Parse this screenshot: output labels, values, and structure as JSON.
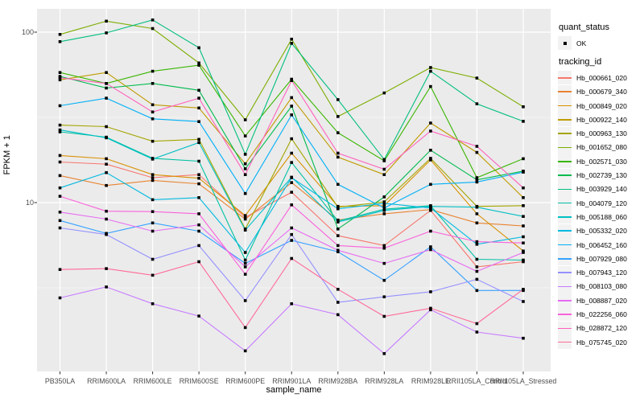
{
  "chart_data": {
    "type": "line",
    "title": "",
    "xlabel": "sample_name",
    "ylabel": "FPKM + 1",
    "y_scale": "log10",
    "grid": true,
    "legend_position": "right",
    "panel_bg": "#EBEBEB",
    "grid_color": "#FFFFFF",
    "point_color": "#000000",
    "y_axis_ticks": [
      {
        "value": 100,
        "label": "100"
      },
      {
        "value": 10,
        "label": "10"
      }
    ],
    "y_minor_gridlines": [
      31.623,
      3.1623
    ],
    "ylim_approx": [
      1.0,
      140
    ],
    "categories": [
      "PB350LA",
      "RRIM600LA",
      "RRIM600LE",
      "RRIM600SE",
      "RRIM600PE",
      "RRIM901LA",
      "RRIM928BA",
      "RRIM928LA",
      "RRIM928LE",
      "RRII105LA_Control",
      "RRII105LA_Stressed"
    ],
    "legend": {
      "quant_title": "quant_status",
      "quant_label": "OK",
      "series_title": "tracking_id"
    },
    "series": [
      {
        "name": "Hb_000661_020",
        "color": "#F8766D",
        "values": [
          17.3,
          16.8,
          14.0,
          14.6,
          8.2,
          11.5,
          6.4,
          5.6,
          9.0,
          4.2,
          4.5
        ]
      },
      {
        "name": "Hb_000679_340",
        "color": "#EA8331",
        "values": [
          14.4,
          12.6,
          13.5,
          12.9,
          8.0,
          13.1,
          7.9,
          8.6,
          9.1,
          7.6,
          7.3
        ]
      },
      {
        "name": "Hb_000849_020",
        "color": "#D89000",
        "values": [
          18.9,
          18.1,
          14.6,
          13.9,
          8.4,
          19.5,
          9.5,
          9.6,
          17.8,
          8.6,
          5.2
        ]
      },
      {
        "name": "Hb_000922_140",
        "color": "#C09B00",
        "values": [
          52.5,
          58.0,
          37.5,
          35.9,
          16.9,
          41.3,
          18.5,
          14.6,
          29.3,
          19.7,
          10.7
        ]
      },
      {
        "name": "Hb_000963_130",
        "color": "#A3A500",
        "values": [
          28.5,
          27.9,
          22.9,
          23.5,
          7.0,
          23.7,
          9.4,
          10.1,
          18.2,
          9.5,
          9.6
        ]
      },
      {
        "name": "Hb_001652_080",
        "color": "#7CAE00",
        "values": [
          97,
          116,
          105,
          66,
          30.6,
          91,
          32,
          44,
          62,
          53.8,
          36.5
        ]
      },
      {
        "name": "Hb_002571_030",
        "color": "#39B600",
        "values": [
          58,
          50,
          59,
          64,
          24.6,
          53,
          25.7,
          17.6,
          48,
          14.0,
          18.1
        ]
      },
      {
        "name": "Hb_002739_130",
        "color": "#00BB4E",
        "values": [
          55,
          47,
          50,
          45.6,
          15.8,
          36.8,
          7.0,
          10.8,
          20.3,
          13.6,
          15.3
        ]
      },
      {
        "name": "Hb_003929_140",
        "color": "#00BF7D",
        "values": [
          88,
          99,
          118,
          81,
          19.2,
          86,
          40.2,
          17.9,
          59,
          38,
          30
        ]
      },
      {
        "name": "Hb_004079_120",
        "color": "#00C1A3",
        "values": [
          26.0,
          24.2,
          18.2,
          17.5,
          4.6,
          17.2,
          7.8,
          9.15,
          9.6,
          4.65,
          4.6
        ]
      },
      {
        "name": "Hb_005188_060",
        "color": "#00BFC4",
        "values": [
          26.7,
          24.0,
          18.0,
          22.5,
          6.9,
          14.1,
          7.7,
          9.0,
          9.5,
          9.4,
          8.3
        ]
      },
      {
        "name": "Hb_005332_020",
        "color": "#00BAE0",
        "values": [
          12.2,
          15.0,
          10.4,
          10.7,
          5.1,
          14.0,
          9.2,
          9.9,
          9.3,
          5.7,
          6.3
        ]
      },
      {
        "name": "Hb_006452_160",
        "color": "#00B0F6",
        "values": [
          37,
          41,
          31,
          29.9,
          11.3,
          32.7,
          12.8,
          9.3,
          12.8,
          13.2,
          15.1
        ]
      },
      {
        "name": "Hb_007929_080",
        "color": "#35A2FF",
        "values": [
          7.85,
          6.6,
          7.6,
          6.8,
          4.4,
          6.0,
          5.15,
          3.5,
          5.5,
          3.05,
          3.05
        ]
      },
      {
        "name": "Hb_007943_120",
        "color": "#9590FF",
        "values": [
          7.1,
          6.5,
          4.65,
          5.6,
          2.66,
          6.5,
          2.6,
          2.8,
          3.0,
          3.55,
          2.63
        ]
      },
      {
        "name": "Hb_008103_080",
        "color": "#C77CFF",
        "values": [
          2.76,
          3.2,
          2.55,
          2.16,
          1.35,
          2.55,
          2.2,
          1.3,
          2.35,
          1.74,
          1.6
        ]
      },
      {
        "name": "Hb_008887_020",
        "color": "#E76BF3",
        "values": [
          8.8,
          8.0,
          6.8,
          7.4,
          4.2,
          7.1,
          5.25,
          4.4,
          5.3,
          3.95,
          5.1
        ]
      },
      {
        "name": "Hb_022256_060",
        "color": "#FA62DB",
        "values": [
          10.9,
          8.9,
          8.85,
          8.6,
          3.8,
          9.7,
          5.6,
          5.4,
          6.8,
          5.9,
          5.8
        ]
      },
      {
        "name": "Hb_028872_120",
        "color": "#FF62BC",
        "values": [
          54,
          50,
          34,
          41,
          14.6,
          52,
          19.5,
          15.7,
          26.3,
          21.4,
          12.2
        ]
      },
      {
        "name": "Hb_075745_020",
        "color": "#FF6A98",
        "values": [
          4.05,
          4.1,
          3.75,
          4.5,
          1.85,
          4.7,
          3.1,
          2.15,
          2.4,
          1.95,
          3.1
        ]
      }
    ]
  }
}
